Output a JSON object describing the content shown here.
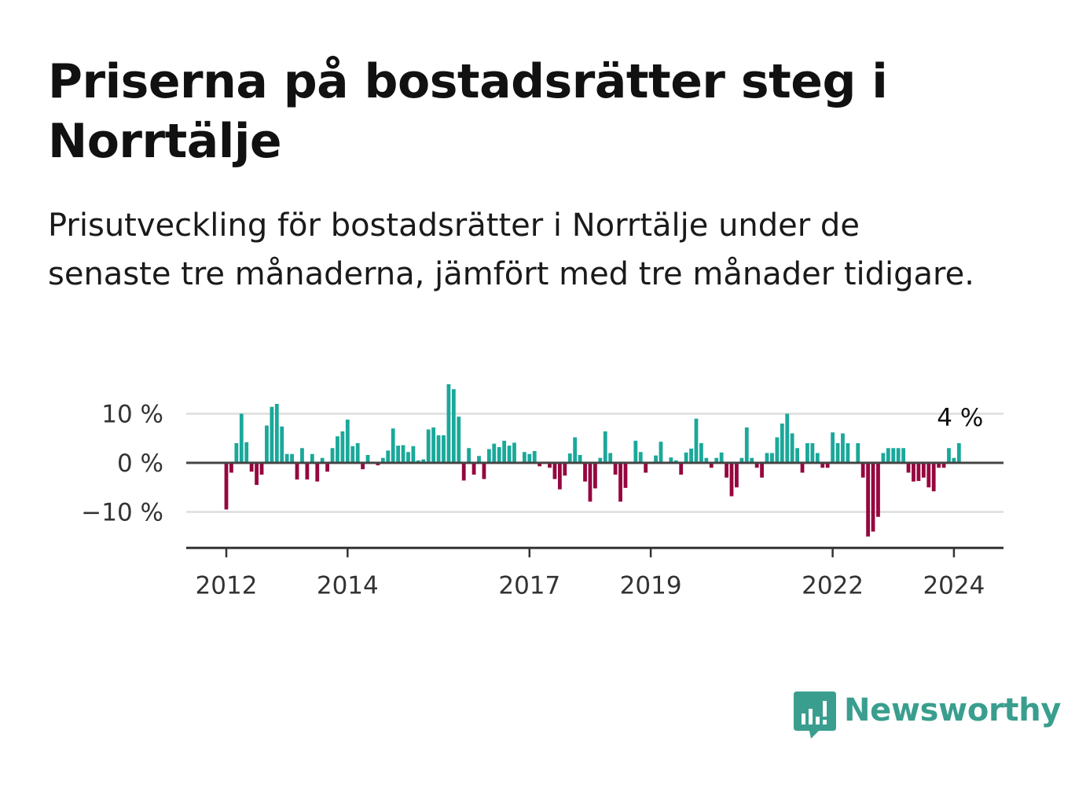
{
  "title": "Priserna på bostadsrätter steg i Norrtälje",
  "subtitle": "Prisutveckling för bostadsrätter i Norrtälje under de senaste tre månaderna, jämfört med tre månader tidigare.",
  "brand": {
    "name": "Newsworthy",
    "color": "#3a9e8e",
    "icon": "bar-chart-speech-bubble-icon"
  },
  "chart_data": {
    "type": "bar",
    "xlabel": "",
    "ylabel": "",
    "ylim": [
      -17,
      15
    ],
    "yticks": [
      10,
      0,
      -10
    ],
    "ytick_labels": [
      "10 %",
      "0 %",
      "−10 %"
    ],
    "xticks": [
      2012,
      2014,
      2017,
      2019,
      2022,
      2024
    ],
    "grid": true,
    "colors": {
      "positive": "#1aa89a",
      "negative": "#96063f"
    },
    "last_value_label": "4 %",
    "start": "2012-01",
    "frequency": "monthly",
    "values": [
      -9.5,
      -2,
      4,
      10,
      4.2,
      -1.8,
      -4.5,
      -2.4,
      7.6,
      11.4,
      12,
      7.4,
      1.8,
      1.8,
      -3.4,
      3,
      -3.4,
      1.8,
      -3.8,
      1,
      -1.8,
      3,
      5.4,
      6.4,
      8.8,
      3.4,
      4,
      -1.3,
      1.6,
      0.2,
      -0.5,
      1,
      2.5,
      7,
      3.5,
      3.6,
      2.2,
      3.4,
      0.5,
      0.7,
      6.8,
      7.2,
      5.6,
      5.6,
      16,
      15,
      9.4,
      -3.6,
      3,
      -2.4,
      1.4,
      -3.3,
      2.8,
      3.9,
      3.2,
      4.5,
      3.5,
      4.1,
      0.1,
      2.2,
      1.8,
      2.4,
      -0.7,
      0.2,
      -1,
      -3.3,
      -5.4,
      -2.6,
      1.9,
      5.2,
      1.6,
      -3.8,
      -7.9,
      -5.2,
      1,
      6.4,
      2,
      -2.4,
      -7.9,
      -5.1,
      0,
      4.5,
      2.2,
      -2,
      0,
      1.5,
      4.3,
      0,
      1.1,
      0.5,
      -2.4,
      2.1,
      2.9,
      9,
      4,
      1,
      -1,
      1,
      2.1,
      -3,
      -6.8,
      -5,
      1,
      7.2,
      1,
      -1,
      -3,
      2,
      2,
      5.2,
      8,
      10,
      6,
      3,
      -2,
      4,
      4,
      2,
      -1,
      -1,
      6.2,
      4,
      6,
      4,
      0,
      4,
      -3,
      -15,
      -14,
      -11,
      2,
      3,
      3,
      3,
      3,
      -2,
      -3.8,
      -3.7,
      -3,
      -5,
      -5.8,
      -1,
      -1,
      3,
      1,
      4
    ]
  }
}
